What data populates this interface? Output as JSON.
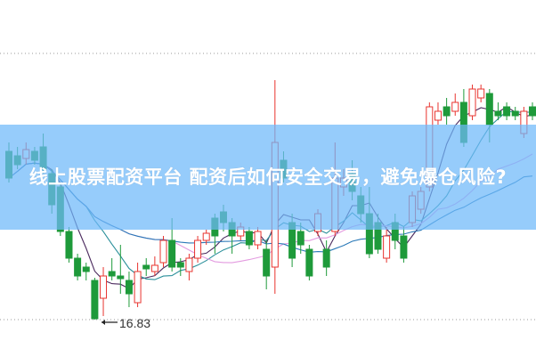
{
  "title": "线上股票配资平台 配资后如何安全交易，避免爆仓风险?",
  "chart_data": {
    "type": "candlestick",
    "low_annotation": "16.83",
    "ylim": [
      16.6,
      19.9
    ],
    "colors": {
      "up": "#e8342f",
      "down": "#1e9a3a",
      "banner": "#6eb9fa",
      "ma": [
        "#4b2a5e",
        "#2a8f9a",
        "#e39be0",
        "#2a79b8"
      ]
    },
    "moving_average_periods": [
      5,
      10,
      20,
      30
    ],
    "candles": [
      [
        18.72,
        18.82,
        18.37,
        18.42
      ],
      [
        18.67,
        18.77,
        18.52,
        18.57
      ],
      [
        18.64,
        18.82,
        18.57,
        18.74
      ],
      [
        18.72,
        18.77,
        18.57,
        18.62
      ],
      [
        18.77,
        18.92,
        18.47,
        18.52
      ],
      [
        18.47,
        18.52,
        18.02,
        18.12
      ],
      [
        18.32,
        18.37,
        17.77,
        17.82
      ],
      [
        17.82,
        17.87,
        17.47,
        17.52
      ],
      [
        17.52,
        17.57,
        17.27,
        17.32
      ],
      [
        17.42,
        17.47,
        17.27,
        17.37
      ],
      [
        17.27,
        17.3,
        16.83,
        16.84
      ],
      [
        17.07,
        17.42,
        16.87,
        17.32
      ],
      [
        17.37,
        17.52,
        17.27,
        17.32
      ],
      [
        17.32,
        17.67,
        17.12,
        17.29
      ],
      [
        17.27,
        17.37,
        16.97,
        17.12
      ],
      [
        17.02,
        17.47,
        16.97,
        17.37
      ],
      [
        17.44,
        17.52,
        17.32,
        17.4
      ],
      [
        17.37,
        17.54,
        17.32,
        17.44
      ],
      [
        17.47,
        17.77,
        17.42,
        17.72
      ],
      [
        17.72,
        17.97,
        17.37,
        17.42
      ],
      [
        17.47,
        17.52,
        17.32,
        17.42
      ],
      [
        17.37,
        17.57,
        17.27,
        17.52
      ],
      [
        17.52,
        17.77,
        17.47,
        17.72
      ],
      [
        17.72,
        17.84,
        17.67,
        17.8
      ],
      [
        17.97,
        18.02,
        17.57,
        17.77
      ],
      [
        18.04,
        18.12,
        17.82,
        17.92
      ],
      [
        17.92,
        17.97,
        17.57,
        17.77
      ],
      [
        17.77,
        17.92,
        17.72,
        17.87
      ],
      [
        17.82,
        17.87,
        17.62,
        17.67
      ],
      [
        17.67,
        17.87,
        17.62,
        17.82
      ],
      [
        17.62,
        17.72,
        17.17,
        17.32
      ],
      [
        17.42,
        19.52,
        17.12,
        18.82
      ],
      [
        18.62,
        18.72,
        18.37,
        18.42
      ],
      [
        17.92,
        18.02,
        17.42,
        17.52
      ],
      [
        17.82,
        17.92,
        17.57,
        17.67
      ],
      [
        17.62,
        17.67,
        17.27,
        17.32
      ],
      [
        17.82,
        18.07,
        17.77,
        18.02
      ],
      [
        17.62,
        17.72,
        17.32,
        17.42
      ],
      [
        17.82,
        18.82,
        17.77,
        18.42
      ],
      [
        18.32,
        18.52,
        18.22,
        18.42
      ],
      [
        18.47,
        18.62,
        18.17,
        18.27
      ],
      [
        18.22,
        18.32,
        17.92,
        18.02
      ],
      [
        18.02,
        18.32,
        17.52,
        17.57
      ],
      [
        17.92,
        18.02,
        17.57,
        17.62
      ],
      [
        17.52,
        17.87,
        17.47,
        17.77
      ],
      [
        17.92,
        18.02,
        17.62,
        17.72
      ],
      [
        17.77,
        17.87,
        17.47,
        17.52
      ],
      [
        17.92,
        18.27,
        17.87,
        18.22
      ],
      [
        18.07,
        18.32,
        18.02,
        18.27
      ],
      [
        18.32,
        19.27,
        18.27,
        19.22
      ],
      [
        19.07,
        19.27,
        19.02,
        19.17
      ],
      [
        19.22,
        19.32,
        19.02,
        19.12
      ],
      [
        19.17,
        19.37,
        19.12,
        19.27
      ],
      [
        19.27,
        19.42,
        18.77,
        18.82
      ],
      [
        19.12,
        19.47,
        19.07,
        19.42
      ],
      [
        19.32,
        19.47,
        19.27,
        19.42
      ],
      [
        19.37,
        19.42,
        18.82,
        19.02
      ],
      [
        19.17,
        19.27,
        19.07,
        19.12
      ],
      [
        19.22,
        19.27,
        19.07,
        19.12
      ],
      [
        19.17,
        19.22,
        19.07,
        19.12
      ],
      [
        18.92,
        19.22,
        18.87,
        19.17
      ],
      [
        19.22,
        19.27,
        19.07,
        19.12
      ]
    ]
  }
}
